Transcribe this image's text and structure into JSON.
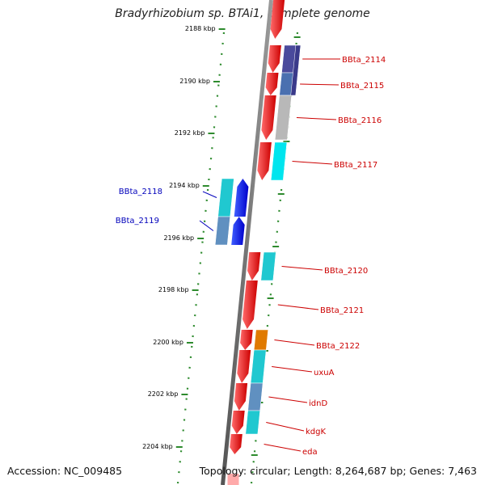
{
  "title": "Bradyrhizobium sp. BTAi1, complete genome",
  "footer": {
    "accession": "Accession: NC_009485",
    "summary": "Topology: circular; Length: 8,264,687 bp; Genes: 7,463"
  },
  "colors": {
    "forward_label": "#cc0000",
    "reverse_label": "#0000bb",
    "tick": "#2e8b2e",
    "backbone": "#777777"
  },
  "axis": {
    "kbp_labels": [
      "2188 kbp",
      "2190 kbp",
      "2192 kbp",
      "2194 kbp",
      "2196 kbp",
      "2198 kbp",
      "2200 kbp",
      "2202 kbp",
      "2204 kbp"
    ]
  },
  "genes": [
    {
      "label": "BBta_2114",
      "strand": "forward",
      "color": "red",
      "cog_color": "#4a4a9c"
    },
    {
      "label": "BBta_2115",
      "strand": "forward",
      "color": "red",
      "cog_color": "#4a70b0"
    },
    {
      "label": "BBta_2116",
      "strand": "forward",
      "color": "red",
      "cog_color": "#b8b8b8"
    },
    {
      "label": "BBta_2117",
      "strand": "forward",
      "color": "red",
      "cog_color": "#00e5ee"
    },
    {
      "label": "BBta_2118",
      "strand": "reverse",
      "color": "blue",
      "cog_color": "#20c8d0"
    },
    {
      "label": "BBta_2119",
      "strand": "reverse",
      "color": "blue",
      "cog_color": "#6090c0"
    },
    {
      "label": "BBta_2120",
      "strand": "forward",
      "color": "red",
      "cog_color": "#20c8d0"
    },
    {
      "label": "BBta_2121",
      "strand": "forward",
      "color": "red",
      "cog_color": ""
    },
    {
      "label": "BBta_2122",
      "strand": "forward",
      "color": "red",
      "cog_color": "#e07a00"
    },
    {
      "label": "uxuA",
      "strand": "forward",
      "color": "red",
      "cog_color": "#20c8d0"
    },
    {
      "label": "idnD",
      "strand": "forward",
      "color": "red",
      "cog_color": "#6090c0"
    },
    {
      "label": "kdgK",
      "strand": "forward",
      "color": "red",
      "cog_color": "#20c8d0"
    },
    {
      "label": "eda",
      "strand": "forward",
      "color": "red",
      "cog_color": ""
    }
  ]
}
